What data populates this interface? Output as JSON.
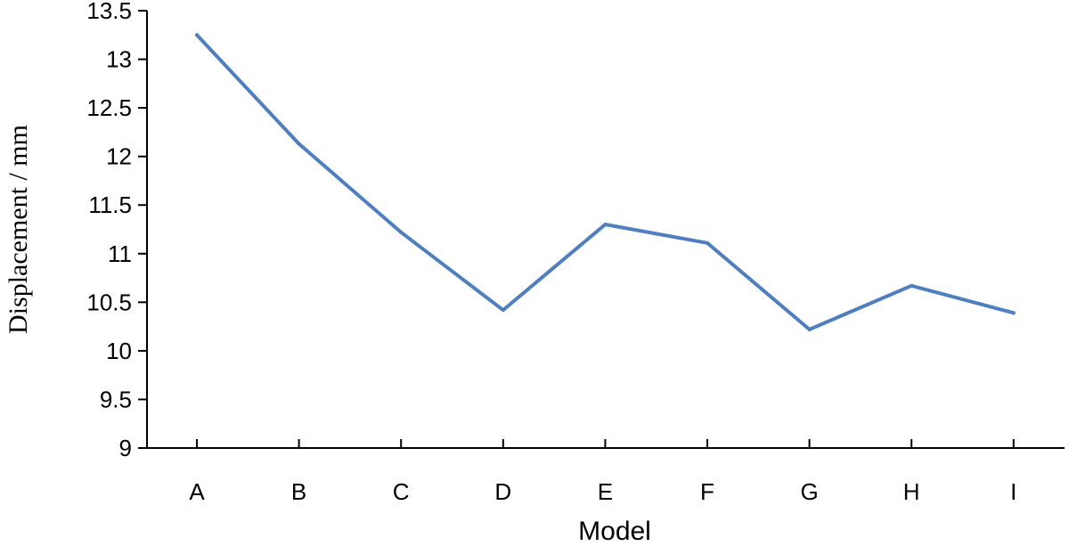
{
  "chart_data": {
    "type": "line",
    "title": "",
    "xlabel": "Model",
    "ylabel": "Displacement / mm",
    "categories": [
      "A",
      "B",
      "C",
      "D",
      "E",
      "F",
      "G",
      "H",
      "I"
    ],
    "series": [
      {
        "values": [
          13.25,
          12.13,
          11.22,
          10.42,
          11.3,
          11.11,
          10.22,
          10.67,
          10.39
        ]
      }
    ],
    "ylim": [
      9,
      13.5
    ],
    "yticks": [
      "9",
      "9.5",
      "10",
      "10.5",
      "11",
      "11.5",
      "12",
      "12.5",
      "13",
      "13.5"
    ],
    "grid": false,
    "legend": "none",
    "colors": {
      "line": "#4f7fbf",
      "axis": "#000000"
    }
  }
}
